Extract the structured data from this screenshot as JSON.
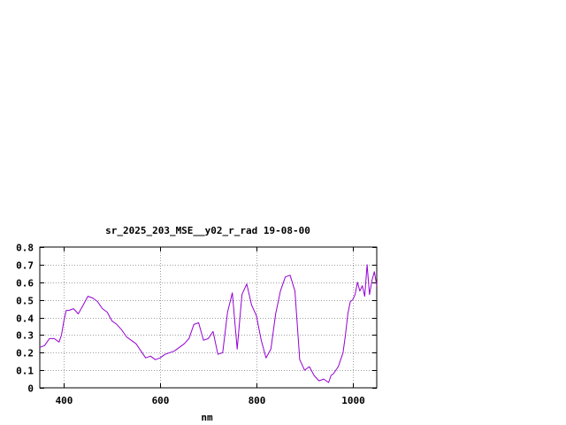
{
  "chart_data": {
    "type": "line",
    "title": "sr_2025_203_MSE__y02_r_rad 19-08-00",
    "xlabel": "nm",
    "ylabel": "",
    "xlim": [
      350,
      1050
    ],
    "ylim": [
      0,
      0.8
    ],
    "xticks": [
      400,
      600,
      800,
      1000
    ],
    "xtick_labels": [
      "400",
      "600",
      "800",
      "1000"
    ],
    "yticks": [
      0,
      0.1,
      0.2,
      0.3,
      0.4,
      0.5,
      0.6,
      0.7,
      0.8
    ],
    "ytick_labels": [
      "0",
      "0.1",
      "0.2",
      "0.3",
      "0.4",
      "0.5",
      "0.6",
      "0.7",
      "0.8"
    ],
    "grid": true,
    "line_color": "#9400d3",
    "series": [
      {
        "x": [
          350,
          360,
          370,
          380,
          390,
          395,
          400,
          405,
          410,
          420,
          430,
          440,
          450,
          460,
          470,
          480,
          490,
          500,
          510,
          520,
          530,
          540,
          550,
          560,
          570,
          580,
          590,
          600,
          610,
          620,
          630,
          640,
          650,
          660,
          670,
          680,
          690,
          700,
          710,
          720,
          730,
          740,
          750,
          760,
          770,
          780,
          790,
          800,
          810,
          820,
          830,
          840,
          850,
          860,
          870,
          880,
          890,
          900,
          910,
          920,
          930,
          940,
          950,
          955,
          960,
          965,
          970,
          975,
          980,
          985,
          990,
          995,
          1000,
          1005,
          1010,
          1015,
          1020,
          1025,
          1030,
          1035,
          1040,
          1045,
          1050
        ],
        "y": [
          0.23,
          0.24,
          0.28,
          0.28,
          0.26,
          0.3,
          0.38,
          0.44,
          0.44,
          0.45,
          0.42,
          0.47,
          0.52,
          0.51,
          0.49,
          0.45,
          0.43,
          0.38,
          0.36,
          0.33,
          0.29,
          0.27,
          0.25,
          0.21,
          0.17,
          0.18,
          0.16,
          0.17,
          0.19,
          0.2,
          0.21,
          0.23,
          0.25,
          0.28,
          0.36,
          0.37,
          0.27,
          0.28,
          0.32,
          0.19,
          0.2,
          0.43,
          0.54,
          0.22,
          0.53,
          0.59,
          0.47,
          0.41,
          0.27,
          0.17,
          0.22,
          0.42,
          0.55,
          0.63,
          0.64,
          0.55,
          0.16,
          0.1,
          0.12,
          0.07,
          0.04,
          0.05,
          0.03,
          0.07,
          0.08,
          0.1,
          0.12,
          0.16,
          0.2,
          0.3,
          0.42,
          0.49,
          0.5,
          0.53,
          0.6,
          0.55,
          0.58,
          0.52,
          0.7,
          0.53,
          0.61,
          0.66,
          0.58
        ]
      }
    ]
  }
}
